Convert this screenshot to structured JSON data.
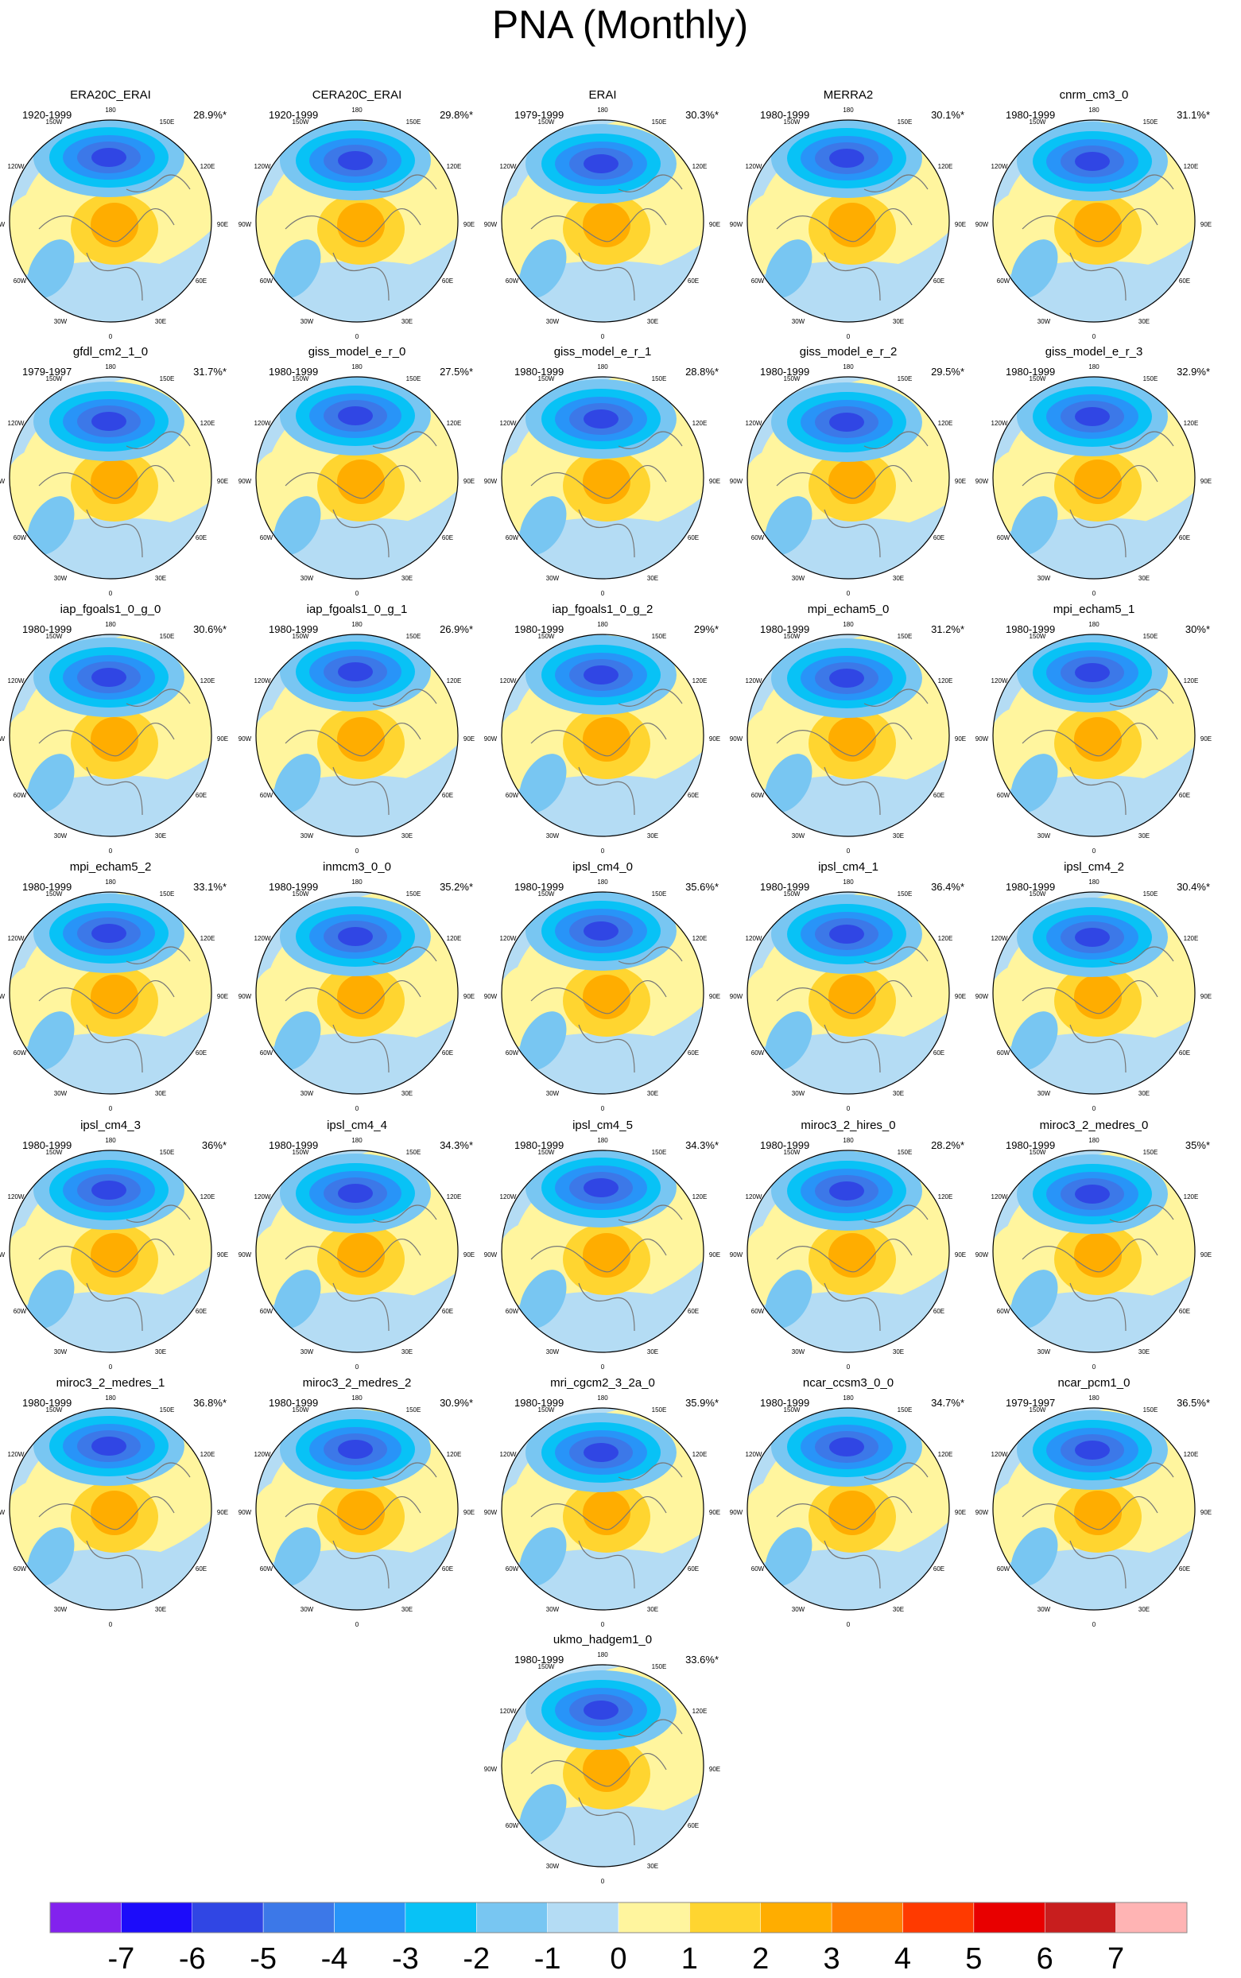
{
  "title": "PNA (Monthly)",
  "lon_labels": {
    "top": "180",
    "upper_left": "150W",
    "upper_right": "150E",
    "mid_upper_left": "120W",
    "mid_upper_right": "120E",
    "left": "90W",
    "right": "90E",
    "mid_lower_left": "60W",
    "mid_lower_right": "60E",
    "lower_left": "30W",
    "lower_right": "30E",
    "bottom": "0"
  },
  "panels": [
    {
      "name": "ERA20C_ERAI",
      "period": "1920-1999",
      "variance": "28.9%*"
    },
    {
      "name": "CERA20C_ERAI",
      "period": "1920-1999",
      "variance": "29.8%*"
    },
    {
      "name": "ERAI",
      "period": "1979-1999",
      "variance": "30.3%*"
    },
    {
      "name": "MERRA2",
      "period": "1980-1999",
      "variance": "30.1%*"
    },
    {
      "name": "cnrm_cm3_0",
      "period": "1980-1999",
      "variance": "31.1%*"
    },
    {
      "name": "gfdl_cm2_1_0",
      "period": "1979-1997",
      "variance": "31.7%*"
    },
    {
      "name": "giss_model_e_r_0",
      "period": "1980-1999",
      "variance": "27.5%*"
    },
    {
      "name": "giss_model_e_r_1",
      "period": "1980-1999",
      "variance": "28.8%*"
    },
    {
      "name": "giss_model_e_r_2",
      "period": "1980-1999",
      "variance": "29.5%*"
    },
    {
      "name": "giss_model_e_r_3",
      "period": "1980-1999",
      "variance": "32.9%*"
    },
    {
      "name": "iap_fgoals1_0_g_0",
      "period": "1980-1999",
      "variance": "30.6%*"
    },
    {
      "name": "iap_fgoals1_0_g_1",
      "period": "1980-1999",
      "variance": "26.9%*"
    },
    {
      "name": "iap_fgoals1_0_g_2",
      "period": "1980-1999",
      "variance": "29%*"
    },
    {
      "name": "mpi_echam5_0",
      "period": "1980-1999",
      "variance": "31.2%*"
    },
    {
      "name": "mpi_echam5_1",
      "period": "1980-1999",
      "variance": "30%*"
    },
    {
      "name": "mpi_echam5_2",
      "period": "1980-1999",
      "variance": "33.1%*"
    },
    {
      "name": "inmcm3_0_0",
      "period": "1980-1999",
      "variance": "35.2%*"
    },
    {
      "name": "ipsl_cm4_0",
      "period": "1980-1999",
      "variance": "35.6%*"
    },
    {
      "name": "ipsl_cm4_1",
      "period": "1980-1999",
      "variance": "36.4%*"
    },
    {
      "name": "ipsl_cm4_2",
      "period": "1980-1999",
      "variance": "30.4%*"
    },
    {
      "name": "ipsl_cm4_3",
      "period": "1980-1999",
      "variance": "36%*"
    },
    {
      "name": "ipsl_cm4_4",
      "period": "1980-1999",
      "variance": "34.3%*"
    },
    {
      "name": "ipsl_cm4_5",
      "period": "1980-1999",
      "variance": "34.3%*"
    },
    {
      "name": "miroc3_2_hires_0",
      "period": "1980-1999",
      "variance": "28.2%*"
    },
    {
      "name": "miroc3_2_medres_0",
      "period": "1980-1999",
      "variance": "35%*"
    },
    {
      "name": "miroc3_2_medres_1",
      "period": "1980-1999",
      "variance": "36.8%*"
    },
    {
      "name": "miroc3_2_medres_2",
      "period": "1980-1999",
      "variance": "30.9%*"
    },
    {
      "name": "mri_cgcm2_3_2a_0",
      "period": "1980-1999",
      "variance": "35.9%*"
    },
    {
      "name": "ncar_ccsm3_0_0",
      "period": "1980-1999",
      "variance": "34.7%*"
    },
    {
      "name": "ncar_pcm1_0",
      "period": "1979-1997",
      "variance": "36.5%*"
    },
    {
      "name": "ukmo_hadgem1_0",
      "period": "1980-1999",
      "variance": "33.6%*"
    }
  ],
  "colorbar": {
    "levels": [
      -7,
      -6,
      -5,
      -4,
      -3,
      -2,
      -1,
      0,
      1,
      2,
      3,
      4,
      5,
      6,
      7
    ],
    "colors": [
      "#8222ee",
      "#1c0cfa",
      "#3046e4",
      "#3c78e8",
      "#2894f8",
      "#08c2f6",
      "#78c6f2",
      "#b4dcf4",
      "#fff59e",
      "#ffd530",
      "#ffad00",
      "#ff7f00",
      "#ff3a00",
      "#e80000",
      "#c81e1e",
      "#ffb4b4"
    ]
  }
}
